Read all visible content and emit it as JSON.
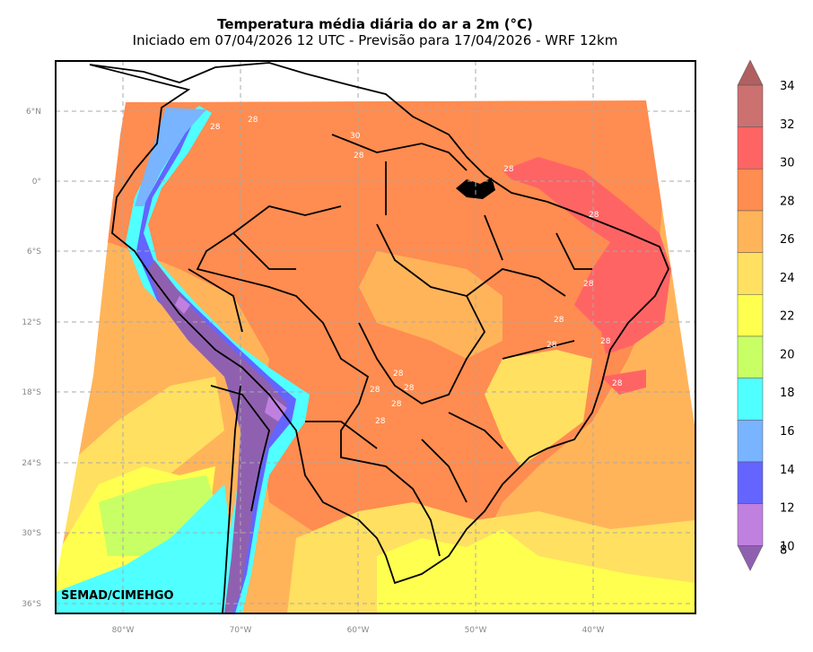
{
  "map": {
    "title": "Temperatura média diária do ar a 2m (°C)",
    "subtitle": "Iniciado em 07/04/2026 12 UTC - Previsão para 17/04/2026 - WRF 12km",
    "credit": "SEMAD/CIMEHGO",
    "lat_ticks": [
      "6°N",
      "0°",
      "6°S",
      "12°S",
      "18°S",
      "24°S",
      "30°S",
      "36°S"
    ],
    "lon_ticks": [
      "80°W",
      "70°W",
      "60°W",
      "50°W",
      "40°W"
    ],
    "contour_labels": [
      "28",
      "28",
      "30",
      "28",
      "28",
      "28",
      "28",
      "28",
      "28",
      "28",
      "28",
      "28",
      "28",
      "28",
      "28",
      "28",
      "28",
      "28",
      "28",
      "28"
    ]
  },
  "colorbar": {
    "levels": [
      "34",
      "32",
      "30",
      "28",
      "26",
      "24",
      "22",
      "20",
      "18",
      "16",
      "14",
      "12",
      "10",
      "8"
    ],
    "colors": [
      "#b06060",
      "#cc7070",
      "#ff6464",
      "#ff8c50",
      "#ffb45a",
      "#ffe060",
      "#ffff50",
      "#c8ff64",
      "#50ffff",
      "#78b4ff",
      "#6464ff",
      "#c080e0",
      "#9060b0"
    ]
  }
}
